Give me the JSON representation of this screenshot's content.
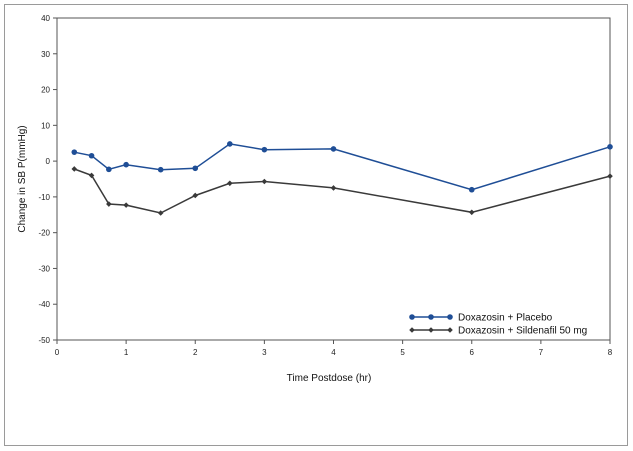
{
  "chart_data": {
    "type": "line",
    "xlabel": "Time Postdose (hr)",
    "ylabel": "Change in SB P(mmHg)",
    "xlim": [
      0,
      8
    ],
    "ylim": [
      -50,
      40
    ],
    "x_ticks": [
      "0",
      "1",
      "2",
      "3",
      "4",
      "5",
      "6",
      "7",
      "8"
    ],
    "y_ticks": [
      "40",
      "30",
      "20",
      "10",
      "0",
      "-10",
      "-20",
      "-30",
      "-40",
      "-50"
    ],
    "grid": false,
    "legend_position": "bottom-right",
    "series": [
      {
        "name": "Doxazosin + Placebo",
        "color": "#1f4e96",
        "marker": "circle",
        "x": [
          0.25,
          0.5,
          0.75,
          1,
          1.5,
          2,
          2.5,
          3,
          4,
          6,
          8
        ],
        "y": [
          2.5,
          1.5,
          -2.3,
          -1,
          -2.4,
          -2,
          4.8,
          3.2,
          3.4,
          -8,
          4
        ]
      },
      {
        "name": "Doxazosin + Sildenafil 50 mg",
        "color": "#3a3a3a",
        "marker": "diamond",
        "x": [
          0.25,
          0.5,
          0.75,
          1,
          1.5,
          2,
          2.5,
          3,
          4,
          6,
          8
        ],
        "y": [
          -2.2,
          -4,
          -12,
          -12.3,
          -14.5,
          -9.6,
          -6.2,
          -5.7,
          -7.5,
          -14.3,
          -4.2
        ]
      }
    ]
  }
}
